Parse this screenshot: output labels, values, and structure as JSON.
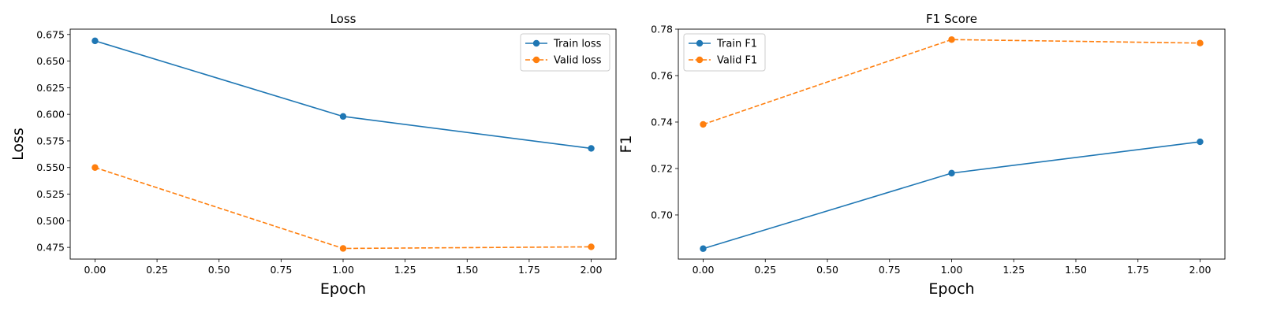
{
  "chart_data": [
    {
      "type": "line",
      "title": "Loss",
      "xlabel": "Epoch",
      "ylabel": "Loss",
      "x": [
        0,
        1,
        2
      ],
      "xlim": [
        -0.1,
        2.1
      ],
      "ylim": [
        0.464,
        0.68
      ],
      "xticks": [
        0,
        0.25,
        0.5,
        0.75,
        1.0,
        1.25,
        1.5,
        1.75,
        2.0
      ],
      "xtick_labels": [
        "0.00",
        "0.25",
        "0.50",
        "0.75",
        "1.00",
        "1.25",
        "1.50",
        "1.75",
        "2.00"
      ],
      "yticks": [
        0.475,
        0.5,
        0.525,
        0.55,
        0.575,
        0.6,
        0.625,
        0.65,
        0.675
      ],
      "ytick_labels": [
        "0.475",
        "0.500",
        "0.525",
        "0.550",
        "0.575",
        "0.600",
        "0.625",
        "0.650",
        "0.675"
      ],
      "grid": false,
      "legend": "top-right",
      "series": [
        {
          "name": "Train loss",
          "values": [
            0.669,
            0.598,
            0.568
          ],
          "color": "#1f77b4",
          "dashed": false
        },
        {
          "name": "Valid loss",
          "values": [
            0.55,
            0.474,
            0.4755
          ],
          "color": "#ff7f0e",
          "dashed": true
        }
      ]
    },
    {
      "type": "line",
      "title": "F1 Score",
      "xlabel": "Epoch",
      "ylabel": "F1",
      "x": [
        0,
        1,
        2
      ],
      "xlim": [
        -0.1,
        2.1
      ],
      "ylim": [
        0.681,
        0.78
      ],
      "xticks": [
        0,
        0.25,
        0.5,
        0.75,
        1.0,
        1.25,
        1.5,
        1.75,
        2.0
      ],
      "xtick_labels": [
        "0.00",
        "0.25",
        "0.50",
        "0.75",
        "1.00",
        "1.25",
        "1.50",
        "1.75",
        "2.00"
      ],
      "yticks": [
        0.7,
        0.72,
        0.74,
        0.76,
        0.78
      ],
      "ytick_labels": [
        "0.70",
        "0.72",
        "0.74",
        "0.76",
        "0.78"
      ],
      "grid": false,
      "legend": "top-left",
      "series": [
        {
          "name": "Train F1",
          "values": [
            0.6855,
            0.718,
            0.7315
          ],
          "color": "#1f77b4",
          "dashed": false
        },
        {
          "name": "Valid F1",
          "values": [
            0.739,
            0.7755,
            0.774
          ],
          "color": "#ff7f0e",
          "dashed": true
        }
      ]
    }
  ]
}
